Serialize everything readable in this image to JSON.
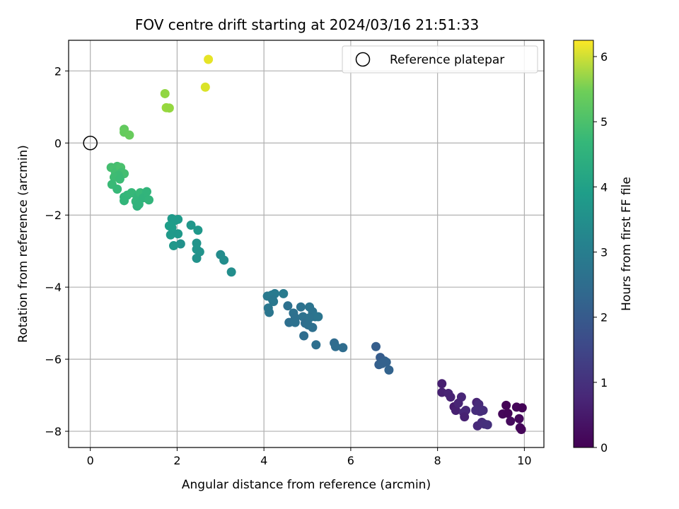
{
  "chart_data": {
    "type": "scatter",
    "title": "FOV centre drift starting at 2024/03/16 21:51:33",
    "xlabel": "Angular distance from reference (arcmin)",
    "ylabel": "Rotation from reference (arcmin)",
    "xlim": [
      -0.5,
      10.45
    ],
    "ylim": [
      -8.45,
      2.85
    ],
    "xticks": [
      0,
      2,
      4,
      6,
      8,
      10
    ],
    "yticks": [
      2,
      0,
      -2,
      -4,
      -6,
      -8
    ],
    "grid": true,
    "legend": {
      "placement": "upper right",
      "entries": [
        "Reference platepar"
      ]
    },
    "reference_point": {
      "label": "Reference platepar",
      "x": 0,
      "y": 0
    },
    "colorbar": {
      "label": "Hours from first FF file",
      "colormap": "viridis",
      "range": [
        0,
        6.25
      ],
      "ticks": [
        0,
        1,
        2,
        3,
        4,
        5,
        6
      ]
    },
    "series": [
      {
        "colored_by": "hours",
        "points": [
          [
            9.58,
            -7.28,
            0.05
          ],
          [
            9.82,
            -7.33,
            0.1
          ],
          [
            9.95,
            -7.35,
            0.06
          ],
          [
            9.5,
            -7.52,
            0.12
          ],
          [
            9.62,
            -7.5,
            0.08
          ],
          [
            9.88,
            -7.65,
            0.15
          ],
          [
            9.68,
            -7.72,
            0.2
          ],
          [
            9.9,
            -7.9,
            0.18
          ],
          [
            9.93,
            -7.95,
            0.1
          ],
          [
            8.1,
            -6.68,
            0.6
          ],
          [
            8.1,
            -6.92,
            0.65
          ],
          [
            8.25,
            -6.95,
            0.7
          ],
          [
            8.3,
            -7.05,
            0.68
          ],
          [
            8.38,
            -7.32,
            0.55
          ],
          [
            8.42,
            -7.42,
            0.62
          ],
          [
            8.55,
            -7.05,
            0.75
          ],
          [
            8.48,
            -7.22,
            0.72
          ],
          [
            8.6,
            -7.48,
            0.8
          ],
          [
            8.65,
            -7.42,
            0.78
          ],
          [
            8.62,
            -7.6,
            0.66
          ],
          [
            8.9,
            -7.2,
            0.7
          ],
          [
            8.95,
            -7.25,
            0.85
          ],
          [
            8.88,
            -7.42,
            0.9
          ],
          [
            8.98,
            -7.45,
            0.88
          ],
          [
            9.05,
            -7.42,
            0.92
          ],
          [
            8.92,
            -7.85,
            0.82
          ],
          [
            9.02,
            -7.75,
            0.88
          ],
          [
            9.08,
            -7.8,
            0.95
          ],
          [
            9.15,
            -7.82,
            0.98
          ],
          [
            6.58,
            -5.65,
            2.1
          ],
          [
            6.68,
            -5.95,
            2.05
          ],
          [
            6.78,
            -6.05,
            2.15
          ],
          [
            6.82,
            -6.08,
            2.2
          ],
          [
            6.65,
            -6.15,
            2.12
          ],
          [
            6.72,
            -6.12,
            2.18
          ],
          [
            6.88,
            -6.3,
            2.22
          ],
          [
            5.62,
            -5.55,
            2.45
          ],
          [
            5.65,
            -5.65,
            2.5
          ],
          [
            5.82,
            -5.68,
            2.48
          ],
          [
            5.2,
            -5.6,
            2.55
          ],
          [
            4.08,
            -4.25,
            2.85
          ],
          [
            4.18,
            -4.22,
            2.9
          ],
          [
            4.25,
            -4.18,
            2.88
          ],
          [
            4.45,
            -4.18,
            2.92
          ],
          [
            4.2,
            -4.35,
            2.8
          ],
          [
            4.22,
            -4.4,
            2.82
          ],
          [
            4.1,
            -4.58,
            2.78
          ],
          [
            4.12,
            -4.7,
            2.75
          ],
          [
            4.55,
            -4.52,
            2.6
          ],
          [
            4.68,
            -4.72,
            2.62
          ],
          [
            4.72,
            -4.85,
            2.58
          ],
          [
            4.58,
            -4.98,
            2.55
          ],
          [
            4.72,
            -4.98,
            2.6
          ],
          [
            4.85,
            -4.55,
            2.65
          ],
          [
            4.9,
            -4.82,
            2.63
          ],
          [
            4.95,
            -5.0,
            2.52
          ],
          [
            5.05,
            -4.55,
            2.7
          ],
          [
            5.12,
            -4.68,
            2.68
          ],
          [
            5.18,
            -4.82,
            2.7
          ],
          [
            5.05,
            -4.85,
            2.66
          ],
          [
            5.12,
            -5.12,
            2.56
          ],
          [
            5.02,
            -5.05,
            2.58
          ],
          [
            5.25,
            -4.82,
            2.72
          ],
          [
            4.92,
            -5.35,
            2.5
          ],
          [
            3.0,
            -3.1,
            3.4
          ],
          [
            3.08,
            -3.25,
            3.42
          ],
          [
            3.25,
            -3.58,
            3.45
          ],
          [
            2.32,
            -2.28,
            3.7
          ],
          [
            2.48,
            -2.42,
            3.75
          ],
          [
            2.45,
            -2.78,
            3.62
          ],
          [
            2.45,
            -2.95,
            3.65
          ],
          [
            2.52,
            -3.02,
            3.6
          ],
          [
            2.45,
            -3.2,
            3.58
          ],
          [
            2.08,
            -2.8,
            3.55
          ],
          [
            1.88,
            -2.1,
            3.8
          ],
          [
            1.95,
            -2.15,
            3.85
          ],
          [
            2.02,
            -2.12,
            3.82
          ],
          [
            1.82,
            -2.3,
            3.9
          ],
          [
            1.88,
            -2.35,
            3.88
          ],
          [
            1.85,
            -2.55,
            3.8
          ],
          [
            2.02,
            -2.52,
            3.78
          ],
          [
            1.92,
            -2.85,
            3.72
          ],
          [
            0.78,
            -1.5,
            4.6
          ],
          [
            0.85,
            -1.45,
            4.65
          ],
          [
            0.95,
            -1.38,
            4.7
          ],
          [
            1.08,
            -1.5,
            4.68
          ],
          [
            1.05,
            -1.62,
            4.62
          ],
          [
            1.12,
            -1.45,
            4.6
          ],
          [
            1.15,
            -1.38,
            4.72
          ],
          [
            1.22,
            -1.52,
            4.55
          ],
          [
            1.3,
            -1.35,
            4.58
          ],
          [
            1.35,
            -1.58,
            4.6
          ],
          [
            1.08,
            -1.75,
            4.5
          ],
          [
            1.12,
            -1.7,
            4.55
          ],
          [
            0.78,
            -1.6,
            4.62
          ],
          [
            0.48,
            -0.68,
            4.9
          ],
          [
            0.55,
            -0.72,
            4.95
          ],
          [
            0.62,
            -0.65,
            4.92
          ],
          [
            0.58,
            -0.82,
            4.88
          ],
          [
            0.7,
            -0.68,
            4.98
          ],
          [
            0.72,
            -0.82,
            4.85
          ],
          [
            0.78,
            -0.85,
            4.9
          ],
          [
            0.65,
            -0.9,
            4.8
          ],
          [
            0.55,
            -0.95,
            4.82
          ],
          [
            0.68,
            -1.0,
            4.78
          ],
          [
            0.5,
            -1.15,
            4.75
          ],
          [
            0.62,
            -1.28,
            4.72
          ],
          [
            0.78,
            0.38,
            5.3
          ],
          [
            0.78,
            0.3,
            5.35
          ],
          [
            0.9,
            0.22,
            5.38
          ],
          [
            1.72,
            1.37,
            5.7
          ],
          [
            1.75,
            0.98,
            5.75
          ],
          [
            1.82,
            0.97,
            5.72
          ],
          [
            2.72,
            2.32,
            6.15
          ],
          [
            2.65,
            1.55,
            6.1
          ]
        ]
      }
    ]
  }
}
